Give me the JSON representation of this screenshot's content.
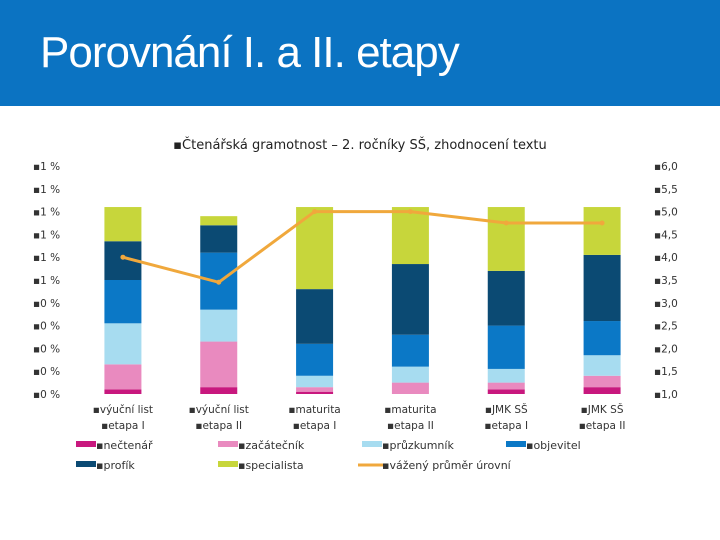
{
  "slide": {
    "title": "Porovnání I. a II. etapy"
  },
  "chart_data": {
    "type": "bar",
    "stacked": true,
    "title": "Čtenářská gramotnost – 2. ročníky SŠ, zhodnocení textu",
    "bullet": "▪",
    "categories": [
      [
        "výuční list",
        "etapa I"
      ],
      [
        "výuční list",
        "etapa II"
      ],
      [
        "maturita",
        "etapa I"
      ],
      [
        "maturita",
        "etapa II"
      ],
      [
        "JMK SŠ",
        "etapa I"
      ],
      [
        "JMK SŠ",
        "etapa II"
      ]
    ],
    "series": [
      {
        "name": "nečtenář",
        "color": "#c8187e",
        "values": [
          2,
          3,
          1,
          0,
          2,
          3
        ]
      },
      {
        "name": "začátečník",
        "color": "#e98abf",
        "values": [
          11,
          20,
          2,
          5,
          3,
          5
        ]
      },
      {
        "name": "průzkumník",
        "color": "#a7dcf0",
        "values": [
          18,
          14,
          5,
          7,
          6,
          9
        ]
      },
      {
        "name": "objevitel",
        "color": "#0b78c6",
        "values": [
          19,
          25,
          14,
          14,
          19,
          15
        ]
      },
      {
        "name": "profík",
        "color": "#0b4a73",
        "values": [
          17,
          12,
          24,
          31,
          24,
          29
        ]
      },
      {
        "name": "specialista",
        "color": "#c7d63b",
        "values": [
          15,
          4,
          36,
          25,
          28,
          21
        ]
      }
    ],
    "line_series": {
      "name": "vážený průměr úrovní",
      "color": "#f0a83c",
      "values": [
        4.0,
        3.45,
        5.0,
        5.0,
        4.75,
        4.75
      ]
    },
    "y_left": {
      "ticks": [
        "1 %",
        "1 %",
        "1 %",
        "1 %",
        "1 %",
        "1 %",
        "0 %",
        "0 %",
        "0 %",
        "0 %",
        "0 %"
      ],
      "max": 100
    },
    "y_right": {
      "ticks": [
        "6,0",
        "5,5",
        "5,0",
        "4,5",
        "4,0",
        "3,5",
        "3,0",
        "2,5",
        "2,0",
        "1,5",
        "1,0"
      ],
      "min": 1.0,
      "max": 6.0
    },
    "grid": false,
    "legend_position": "bottom"
  }
}
